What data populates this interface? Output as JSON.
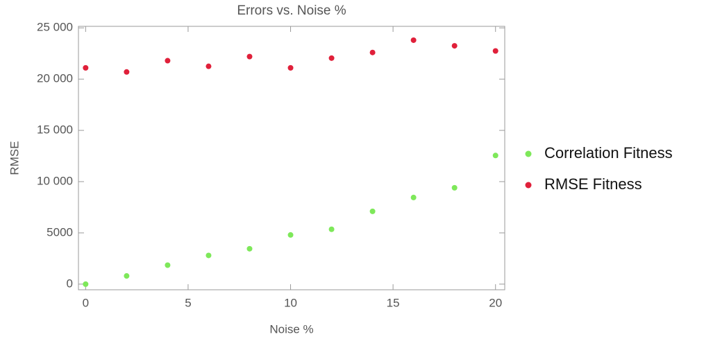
{
  "chart_data": {
    "type": "scatter",
    "title": "Errors vs. Noise %",
    "x_label": "Noise %",
    "y_label": "RMSE",
    "x": [
      0,
      2,
      4,
      6,
      8,
      10,
      12,
      14,
      16,
      18,
      20
    ],
    "series": [
      {
        "name": "Correlation Fitness",
        "color": "#7ee85a",
        "values": [
          0,
          800,
          1850,
          2800,
          3450,
          4800,
          5350,
          7100,
          8450,
          9400,
          12550
        ]
      },
      {
        "name": "RMSE Fitness",
        "color": "#e0203a",
        "values": [
          21100,
          20700,
          21800,
          21250,
          22200,
          21100,
          22050,
          22600,
          23800,
          23250,
          22750
        ]
      }
    ],
    "xlim": [
      -0.35,
      20.45
    ],
    "ylim": [
      -550,
      25150
    ],
    "xticks": [
      0,
      5,
      10,
      15,
      20
    ],
    "yticks": [
      0,
      5000,
      {
        "value": 10000,
        "label": "10 000"
      },
      {
        "value": 15000,
        "label": "15 000"
      },
      {
        "value": 20000,
        "label": "20 000"
      },
      {
        "value": 25000,
        "label": "25 000"
      }
    ],
    "legend": "right"
  }
}
